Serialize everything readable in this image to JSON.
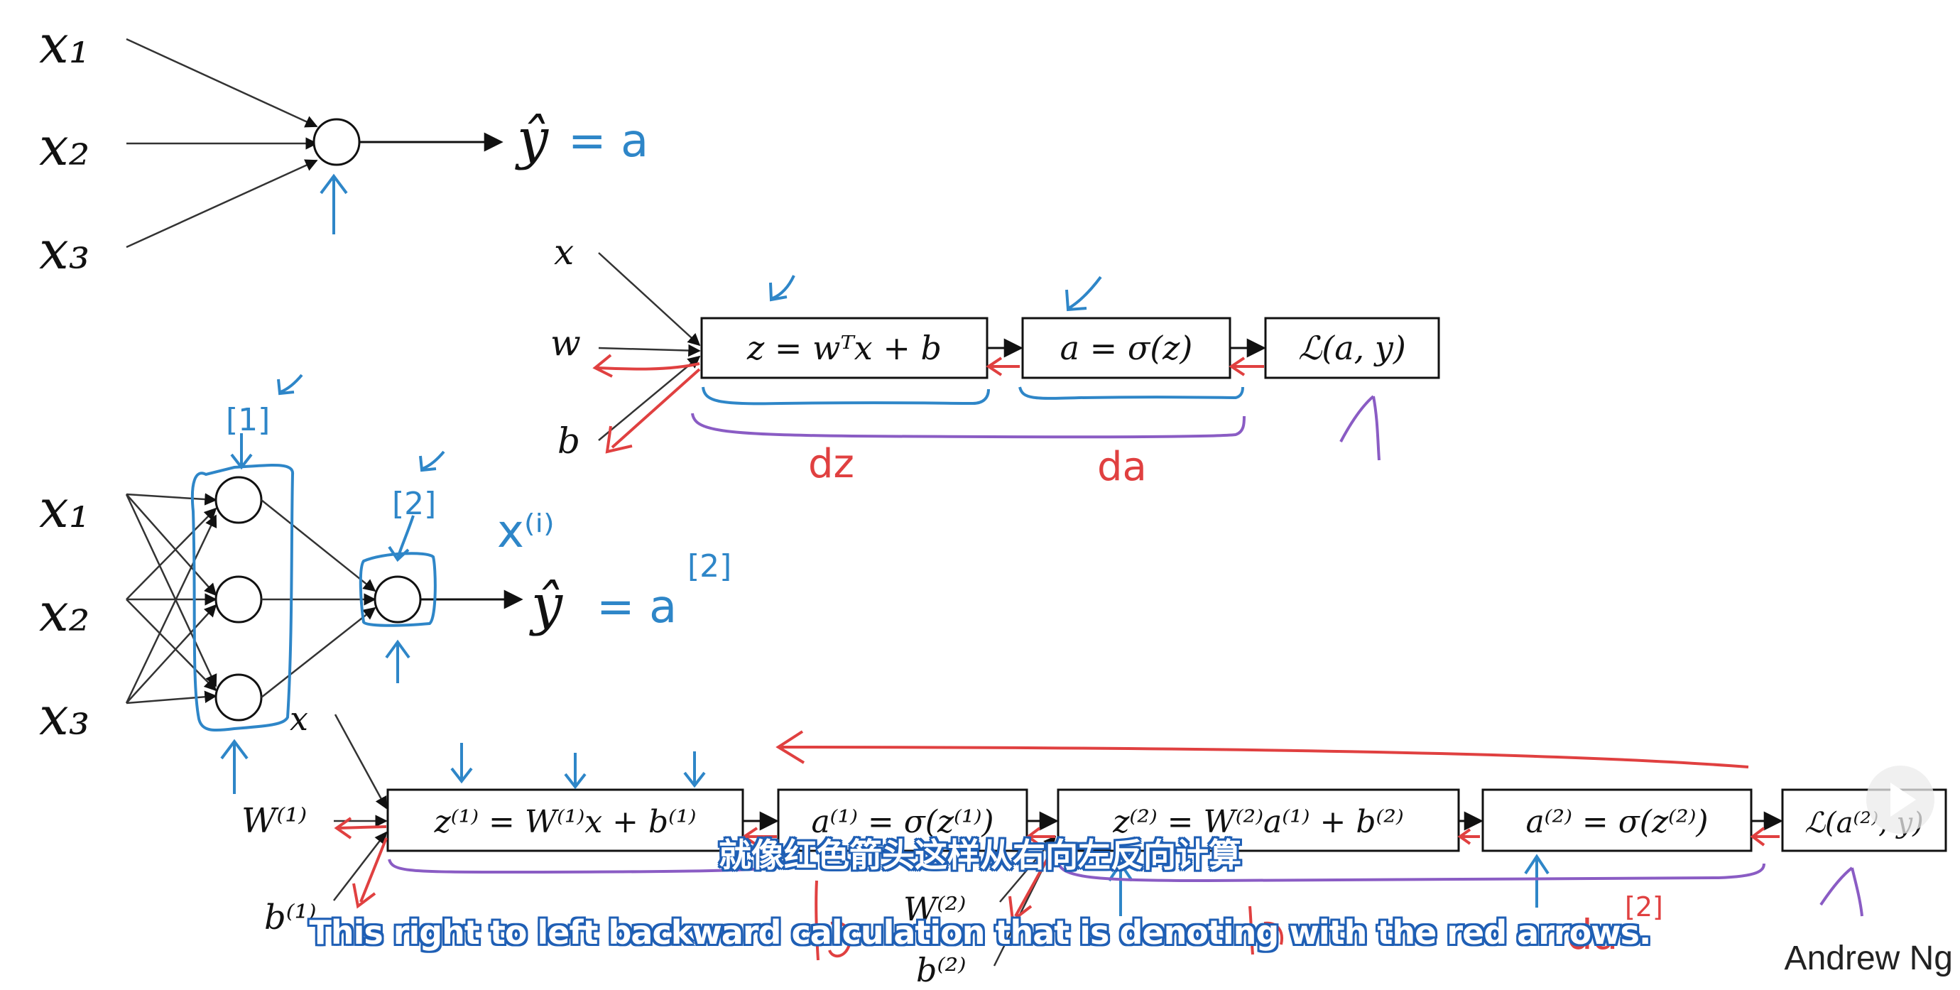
{
  "top_net": {
    "inputs": [
      "x₁",
      "x₂",
      "x₃"
    ],
    "output": "ŷ",
    "annotation": "= a"
  },
  "top_graph": {
    "inputs": [
      "x",
      "w",
      "b"
    ],
    "boxes": [
      "z = wᵀx + b",
      "a = σ(z)",
      "ℒ(a, y)"
    ],
    "brace_labels": [
      "dz",
      "da"
    ]
  },
  "bottom_net": {
    "inputs": [
      "x₁",
      "x₂",
      "x₃"
    ],
    "layer1_annotation": "[1]",
    "layer2_annotation": "[2]",
    "sample_annotation": "x⁽ⁱ⁾",
    "output": "ŷ",
    "output_annotation": "= a",
    "output_superscript": "[2]"
  },
  "bottom_graph": {
    "inputs": [
      "x",
      "W⁽¹⁾",
      "b⁽¹⁾"
    ],
    "inputs_l2": [
      "W⁽²⁾",
      "b⁽²⁾"
    ],
    "boxes": [
      "z⁽¹⁾ = W⁽¹⁾x + b⁽¹⁾",
      "a⁽¹⁾ = σ(z⁽¹⁾)",
      "z⁽²⁾ = W⁽²⁾a⁽¹⁾ + b⁽²⁾",
      "a⁽²⁾ = σ(z⁽²⁾)",
      "ℒ(a⁽²⁾, y)"
    ],
    "red_labels": [
      "da",
      "[2]"
    ]
  },
  "subtitles": {
    "chinese": "就像红色箭头这样从右向左反向计算",
    "english": "This right to left backward calculation that is denoting with the red arrows."
  },
  "credit": "Andrew Ng",
  "colors": {
    "ink": "#111111",
    "blue": "#2e86c8",
    "red": "#e04040",
    "purple": "#8a5cc4"
  }
}
